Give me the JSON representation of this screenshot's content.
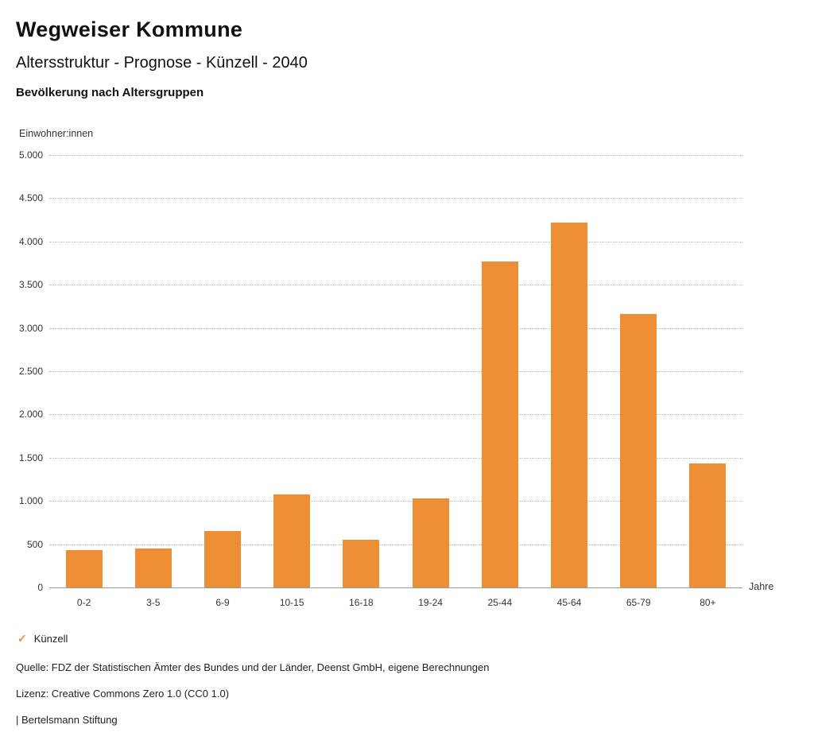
{
  "header": {
    "title": "Wegweiser Kommune",
    "subtitle": "Altersstruktur - Prognose - Künzell - 2040",
    "chart_heading": "Bevölkerung nach Altersgruppen"
  },
  "chart_data": {
    "type": "bar",
    "title": "Bevölkerung nach Altersgruppen",
    "ylabel": "Einwohner:innen",
    "xlabel": "Jahre",
    "categories": [
      "0-2",
      "3-5",
      "6-9",
      "10-15",
      "16-18",
      "19-24",
      "25-44",
      "45-64",
      "65-79",
      "80+"
    ],
    "values": [
      430,
      455,
      650,
      1075,
      555,
      1030,
      3770,
      4220,
      3160,
      1430
    ],
    "ylim": [
      0,
      5000
    ],
    "yticks": [
      {
        "value": 0,
        "label": "0"
      },
      {
        "value": 500,
        "label": "500"
      },
      {
        "value": 1000,
        "label": "1.000"
      },
      {
        "value": 1500,
        "label": "1.500"
      },
      {
        "value": 2000,
        "label": "2.000"
      },
      {
        "value": 2500,
        "label": "2.500"
      },
      {
        "value": 3000,
        "label": "3.000"
      },
      {
        "value": 3500,
        "label": "3.500"
      },
      {
        "value": 4000,
        "label": "4.000"
      },
      {
        "value": 4500,
        "label": "4.500"
      },
      {
        "value": 5000,
        "label": "5.000"
      }
    ],
    "grid": true,
    "bar_color": "#ED8E35",
    "legend_position": "bottom-left",
    "series_name": "Künzell"
  },
  "legend": {
    "check_glyph": "✓",
    "label": "Künzell",
    "color": "#ED8E35"
  },
  "footer": {
    "source": "Quelle: FDZ der Statistischen Ämter des Bundes und der Länder, Deenst GmbH, eigene Berechnungen",
    "license": "Lizenz: Creative Commons Zero 1.0 (CC0 1.0)",
    "attribution": "| Bertelsmann Stiftung"
  }
}
